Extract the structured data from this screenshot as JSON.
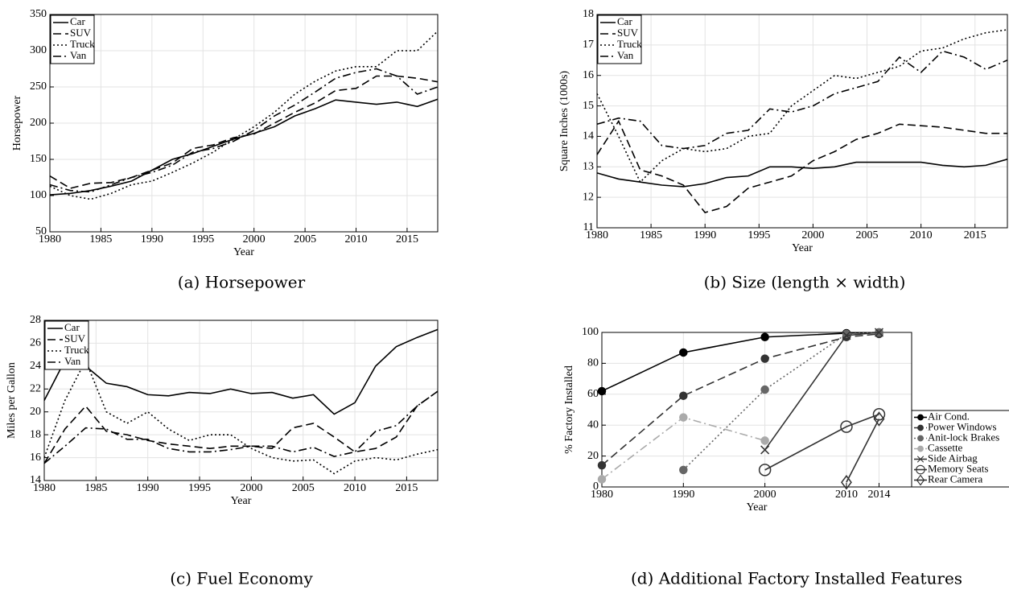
{
  "chart_data": [
    {
      "type": "line",
      "caption": "(a) Horsepower",
      "xlabel": "Year",
      "ylabel": "Horsepower",
      "xlim": [
        1980,
        2018
      ],
      "ylim": [
        50,
        350
      ],
      "xticks": [
        1980,
        1985,
        1990,
        1995,
        2000,
        2005,
        2010,
        2015
      ],
      "yticks": [
        50,
        100,
        150,
        200,
        250,
        300,
        350
      ],
      "grid": true,
      "legend": "upper left",
      "x": [
        1980,
        1982,
        1984,
        1986,
        1988,
        1990,
        1992,
        1994,
        1996,
        1998,
        2000,
        2002,
        2004,
        2006,
        2008,
        2010,
        2012,
        2014,
        2016,
        2018
      ],
      "series": [
        {
          "name": "Car",
          "color": "#000000",
          "line_style": "solid",
          "values": [
            101,
            103,
            107,
            113,
            120,
            135,
            150,
            158,
            168,
            178,
            186,
            195,
            210,
            220,
            232,
            229,
            226,
            229,
            223,
            233
          ]
        },
        {
          "name": "SUV",
          "color": "#000000",
          "line_style": "dashed",
          "values": [
            127,
            110,
            117,
            118,
            125,
            135,
            145,
            165,
            170,
            180,
            185,
            200,
            215,
            228,
            245,
            248,
            265,
            265,
            262,
            257
          ]
        },
        {
          "name": "Truck",
          "color": "#000000",
          "line_style": "dotted",
          "values": [
            113,
            100,
            95,
            103,
            115,
            120,
            132,
            145,
            160,
            178,
            195,
            215,
            240,
            258,
            272,
            278,
            278,
            300,
            300,
            327
          ]
        },
        {
          "name": "Van",
          "color": "#000000",
          "line_style": "dashdot",
          "values": [
            115,
            107,
            105,
            115,
            125,
            132,
            142,
            160,
            165,
            175,
            190,
            210,
            225,
            243,
            262,
            270,
            275,
            265,
            240,
            250
          ]
        }
      ]
    },
    {
      "type": "line",
      "caption": "(b) Size (length × width)",
      "xlabel": "Year",
      "ylabel": "Square Inches (1000s)",
      "xlim": [
        1980,
        2018
      ],
      "ylim": [
        11,
        18
      ],
      "xticks": [
        1980,
        1985,
        1990,
        1995,
        2000,
        2005,
        2010,
        2015
      ],
      "yticks": [
        11,
        12,
        13,
        14,
        15,
        16,
        17,
        18
      ],
      "grid": true,
      "legend": "upper left",
      "x": [
        1980,
        1982,
        1984,
        1986,
        1988,
        1990,
        1992,
        1994,
        1996,
        1998,
        2000,
        2002,
        2004,
        2006,
        2008,
        2010,
        2012,
        2014,
        2016,
        2018
      ],
      "series": [
        {
          "name": "Car",
          "color": "#000000",
          "line_style": "solid",
          "values": [
            12.8,
            12.6,
            12.5,
            12.4,
            12.35,
            12.45,
            12.65,
            12.7,
            13.0,
            13.0,
            12.95,
            13.0,
            13.15,
            13.15,
            13.15,
            13.15,
            13.05,
            13.0,
            13.05,
            13.25
          ]
        },
        {
          "name": "SUV",
          "color": "#000000",
          "line_style": "dashed",
          "values": [
            13.4,
            14.5,
            12.9,
            12.7,
            12.4,
            11.5,
            11.7,
            12.3,
            12.5,
            12.7,
            13.2,
            13.5,
            13.9,
            14.1,
            14.4,
            14.35,
            14.3,
            14.2,
            14.1,
            14.1
          ]
        },
        {
          "name": "Truck",
          "color": "#000000",
          "line_style": "dotted",
          "values": [
            15.4,
            14.0,
            12.5,
            13.2,
            13.6,
            13.5,
            13.6,
            14.0,
            14.1,
            15.0,
            15.5,
            16.0,
            15.9,
            16.1,
            16.3,
            16.8,
            16.9,
            17.2,
            17.4,
            17.5
          ]
        },
        {
          "name": "Van",
          "color": "#000000",
          "line_style": "dashdot",
          "values": [
            14.4,
            14.6,
            14.5,
            13.7,
            13.6,
            13.7,
            14.1,
            14.2,
            14.9,
            14.8,
            15.0,
            15.4,
            15.6,
            15.8,
            16.6,
            16.1,
            16.8,
            16.6,
            16.2,
            16.5
          ]
        }
      ]
    },
    {
      "type": "line",
      "caption": "(c) Fuel Economy",
      "xlabel": "Year",
      "ylabel": "Miles per Gallon",
      "xlim": [
        1980,
        2018
      ],
      "ylim": [
        14,
        28
      ],
      "xticks": [
        1980,
        1985,
        1990,
        1995,
        2000,
        2005,
        2010,
        2015
      ],
      "yticks": [
        14,
        16,
        18,
        20,
        22,
        24,
        26,
        28
      ],
      "grid": true,
      "legend": "upper left",
      "x": [
        1980,
        1982,
        1984,
        1986,
        1988,
        1990,
        1992,
        1994,
        1996,
        1998,
        2000,
        2002,
        2004,
        2006,
        2008,
        2010,
        2012,
        2014,
        2016,
        2018
      ],
      "series": [
        {
          "name": "Car",
          "color": "#000000",
          "line_style": "solid",
          "values": [
            21,
            24.5,
            24,
            22.5,
            22.2,
            21.5,
            21.4,
            21.7,
            21.6,
            22,
            21.6,
            21.7,
            21.2,
            21.5,
            19.8,
            20.8,
            24,
            25.7,
            26.5,
            27.2
          ]
        },
        {
          "name": "SUV",
          "color": "#000000",
          "line_style": "dashed",
          "values": [
            15.5,
            18.5,
            20.5,
            18.3,
            18,
            17.5,
            17.2,
            17,
            16.8,
            17,
            17,
            16.8,
            18.6,
            19,
            17.8,
            16.5,
            16.8,
            17.8,
            20.5,
            21.8
          ]
        },
        {
          "name": "Truck",
          "color": "#000000",
          "line_style": "dotted",
          "values": [
            16,
            21,
            24.5,
            20,
            19,
            20,
            18.5,
            17.5,
            18,
            18,
            16.8,
            16,
            15.7,
            15.8,
            14.6,
            15.7,
            16,
            15.8,
            16.3,
            16.7
          ]
        },
        {
          "name": "Van",
          "color": "#000000",
          "line_style": "dashdot",
          "values": [
            15.5,
            17,
            18.6,
            18.5,
            17.6,
            17.6,
            16.8,
            16.5,
            16.5,
            16.7,
            17,
            17,
            16.5,
            16.9,
            16.1,
            16.5,
            18.3,
            18.8,
            20.5,
            21.8
          ]
        }
      ]
    },
    {
      "type": "line",
      "caption": "(d) Additional Factory Installed Features",
      "xlabel": "Year",
      "ylabel": "% Factory Installed",
      "xlim": [
        1980,
        2018
      ],
      "ylim": [
        0,
        100
      ],
      "xticks": [
        1980,
        1990,
        2000,
        2010,
        2014
      ],
      "yticks": [
        0,
        20,
        40,
        60,
        80,
        100
      ],
      "grid": true,
      "legend": "outside right",
      "x": [
        1980,
        1990,
        2000,
        2010,
        2014
      ],
      "series": [
        {
          "name": "Air Cond.",
          "color": "#000000",
          "line_style": "solid",
          "marker": "circle-filled",
          "values": [
            62,
            87,
            97,
            99.5,
            100
          ]
        },
        {
          "name": "Power Windows",
          "color": "#333333",
          "line_style": "dashed",
          "marker": "circle-filled",
          "values": [
            14,
            59,
            83,
            97,
            99
          ]
        },
        {
          "name": "Anit-lock Brakes",
          "color": "#666666",
          "line_style": "dotted",
          "marker": "circle-filled",
          "values": [
            null,
            11,
            63,
            99,
            100
          ]
        },
        {
          "name": "Cassette",
          "color": "#aaaaaa",
          "line_style": "dashdot",
          "marker": "circle-filled",
          "values": [
            5,
            45,
            30,
            null,
            null
          ]
        },
        {
          "name": "Side Airbag",
          "color": "#333333",
          "line_style": "solid",
          "marker": "x",
          "values": [
            null,
            null,
            24,
            98,
            100
          ]
        },
        {
          "name": "Memory Seats",
          "color": "#333333",
          "line_style": "solid",
          "marker": "circle-open",
          "values": [
            null,
            null,
            11,
            39,
            47
          ]
        },
        {
          "name": "Rear Camera",
          "color": "#333333",
          "line_style": "solid",
          "marker": "diamond-open",
          "values": [
            null,
            null,
            null,
            3,
            44
          ]
        }
      ]
    }
  ]
}
